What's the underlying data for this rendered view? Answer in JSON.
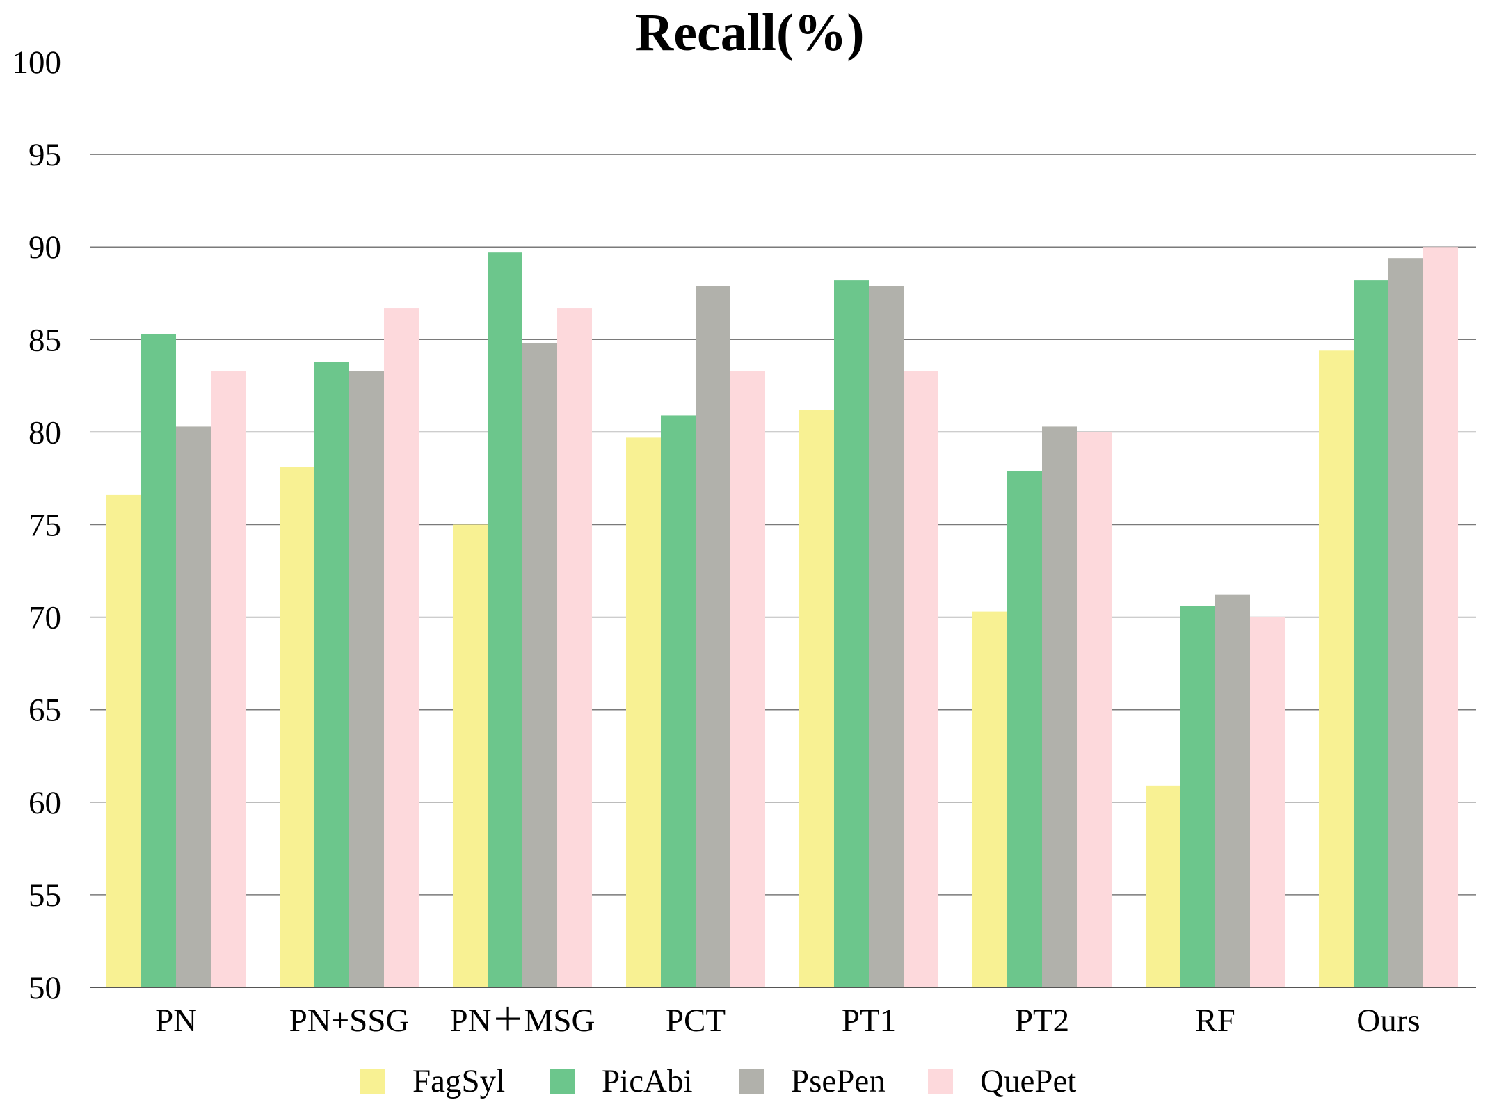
{
  "chart_data": {
    "type": "bar",
    "title": "Recall(%)",
    "xlabel": "",
    "ylabel": "",
    "ylim": [
      50,
      100
    ],
    "yticks": [
      "50",
      "55",
      "60",
      "65",
      "70",
      "75",
      "80",
      "85",
      "90",
      "95",
      "100"
    ],
    "grid": true,
    "legend_position": "bottom",
    "categories": [
      "PN",
      "PN+SSG",
      "PN＋MSG",
      "PCT",
      "PT1",
      "PT2",
      "RF",
      "Ours"
    ],
    "series": [
      {
        "name": "FagSyl",
        "color": "#f8f193",
        "values": [
          76.6,
          78.1,
          75.0,
          79.7,
          81.2,
          70.3,
          60.9,
          84.4
        ]
      },
      {
        "name": "PicAbi",
        "color": "#6cc68c",
        "values": [
          85.3,
          83.8,
          89.7,
          80.9,
          88.2,
          77.9,
          70.6,
          88.2
        ]
      },
      {
        "name": "PsePen",
        "color": "#b1b1ab",
        "values": [
          80.3,
          83.3,
          84.8,
          87.9,
          87.9,
          80.3,
          71.2,
          89.4
        ]
      },
      {
        "name": "QuePet",
        "color": "#fdd9dc",
        "values": [
          83.3,
          86.7,
          86.7,
          83.3,
          83.3,
          80.0,
          70.0,
          90.0
        ]
      }
    ]
  }
}
